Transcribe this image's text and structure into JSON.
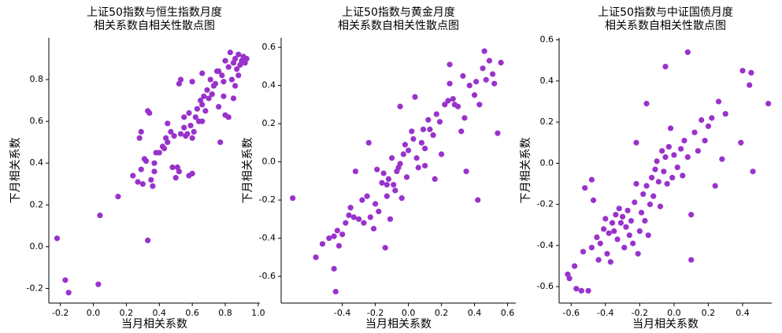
{
  "chart_data": [
    {
      "type": "scatter",
      "title": "上证50指数与恒生指数月度\n相关系数自相关性散点图",
      "x_label": "当月相关系数",
      "y_label": "下月相关系数",
      "color": "#9932cc",
      "xlim": [
        -0.27,
        1.01
      ],
      "ylim": [
        -0.27,
        1.0
      ],
      "xticks": [
        -0.2,
        {
          "value": 0,
          "label": "0.0"
        },
        0.2,
        0.4,
        0.6,
        0.8,
        {
          "value": 1,
          "label": "1.0"
        }
      ],
      "yticks": [
        -0.2,
        {
          "value": 0,
          "label": "0.0"
        },
        0.2,
        0.4,
        0.6,
        0.8
      ],
      "x": [
        -0.22,
        -0.17,
        -0.15,
        0.03,
        0.04,
        0.15,
        0.33,
        0.24,
        0.27,
        0.29,
        0.3,
        0.31,
        0.32,
        0.33,
        0.34,
        0.35,
        0.36,
        0.37,
        0.37,
        0.28,
        0.29,
        0.38,
        0.4,
        0.42,
        0.43,
        0.44,
        0.45,
        0.47,
        0.49,
        0.5,
        0.51,
        0.52,
        0.53,
        0.53,
        0.55,
        0.55,
        0.56,
        0.57,
        0.58,
        0.58,
        0.6,
        0.59,
        0.6,
        0.61,
        0.62,
        0.63,
        0.64,
        0.65,
        0.66,
        0.66,
        0.67,
        0.68,
        0.69,
        0.7,
        0.71,
        0.72,
        0.73,
        0.74,
        0.75,
        0.76,
        0.77,
        0.78,
        0.79,
        0.8,
        0.8,
        0.82,
        0.82,
        0.83,
        0.84,
        0.85,
        0.86,
        0.86,
        0.87,
        0.88,
        0.88,
        0.89,
        0.9,
        0.91,
        0.92,
        0.93,
        0.6,
        0.66,
        0.52,
        0.45,
        0.48,
        0.76,
        0.79,
        0.85
      ],
      "values": [
        0.04,
        -0.16,
        -0.22,
        -0.18,
        0.15,
        0.24,
        0.03,
        0.34,
        0.31,
        0.37,
        0.3,
        0.42,
        0.41,
        0.65,
        0.64,
        0.32,
        0.29,
        0.36,
        0.4,
        0.52,
        0.55,
        0.45,
        0.45,
        0.48,
        0.47,
        0.52,
        0.5,
        0.55,
        0.53,
        0.33,
        0.38,
        0.36,
        0.54,
        0.8,
        0.57,
        0.62,
        0.53,
        0.54,
        0.64,
        0.34,
        0.35,
        0.58,
        0.52,
        0.55,
        0.62,
        0.66,
        0.6,
        0.7,
        0.68,
        0.6,
        0.72,
        0.65,
        0.75,
        0.71,
        0.8,
        0.73,
        0.77,
        0.78,
        0.84,
        0.84,
        0.5,
        0.82,
        0.79,
        0.89,
        0.63,
        0.62,
        0.86,
        0.93,
        0.8,
        0.88,
        0.77,
        0.9,
        0.85,
        0.92,
        0.82,
        0.87,
        0.89,
        0.91,
        0.88,
        0.9,
        0.79,
        0.83,
        0.78,
        0.59,
        0.38,
        0.67,
        0.72,
        0.71
      ]
    },
    {
      "type": "scatter",
      "title": "上证50指数与黄金月度\n相关系数自相关性散点图",
      "x_label": "当月相关系数",
      "y_label": "下月相关系数",
      "color": "#9932cc",
      "xlim": [
        -0.77,
        0.65
      ],
      "ylim": [
        -0.74,
        0.65
      ],
      "xticks": [
        -0.4,
        -0.2,
        {
          "value": 0,
          "label": "0.0"
        },
        0.2,
        0.4,
        0.6
      ],
      "yticks": [
        -0.6,
        -0.4,
        -0.2,
        {
          "value": 0,
          "label": "0.0"
        },
        0.2,
        0.4,
        0.6
      ],
      "x": [
        -0.7,
        -0.56,
        -0.52,
        -0.48,
        -0.45,
        -0.44,
        -0.45,
        -0.43,
        -0.42,
        -0.4,
        -0.38,
        -0.36,
        -0.35,
        -0.33,
        -0.32,
        -0.3,
        -0.28,
        -0.27,
        -0.25,
        -0.24,
        -0.23,
        -0.21,
        -0.2,
        -0.19,
        -0.18,
        -0.16,
        -0.15,
        -0.14,
        -0.13,
        -0.12,
        -0.11,
        -0.1,
        -0.09,
        -0.08,
        -0.07,
        -0.06,
        -0.05,
        -0.04,
        -0.03,
        -0.02,
        -0.01,
        0.0,
        0.02,
        0.03,
        0.05,
        0.06,
        0.08,
        0.09,
        0.1,
        0.12,
        0.13,
        0.15,
        0.16,
        0.17,
        0.19,
        0.2,
        0.22,
        0.24,
        0.25,
        0.27,
        0.28,
        0.3,
        0.32,
        0.33,
        0.34,
        0.35,
        0.37,
        0.4,
        0.41,
        0.42,
        0.43,
        0.45,
        0.46,
        0.47,
        0.49,
        0.51,
        0.52,
        0.54,
        0.56,
        -0.05,
        0.04,
        0.25,
        -0.13,
        0.1
      ],
      "values": [
        -0.19,
        -0.5,
        -0.43,
        -0.4,
        -0.56,
        -0.68,
        -0.39,
        -0.36,
        -0.44,
        -0.38,
        -0.32,
        -0.28,
        -0.24,
        -0.29,
        -0.05,
        -0.3,
        -0.2,
        -0.32,
        -0.18,
        0.1,
        -0.29,
        -0.35,
        -0.22,
        -0.04,
        -0.26,
        -0.11,
        -0.06,
        -0.45,
        -0.12,
        -0.09,
        -0.3,
        0.02,
        -0.12,
        -0.15,
        -0.05,
        -0.03,
        -0.01,
        -0.19,
        0.04,
        0.09,
        -0.08,
        0.06,
        0.16,
        0.12,
        0.02,
        -0.03,
        0.1,
        0.17,
        -0.02,
        0.22,
        0.17,
        0.14,
        -0.09,
        0.25,
        0.21,
        0.04,
        0.3,
        0.32,
        0.41,
        0.33,
        0.3,
        0.29,
        0.16,
        0.45,
        0.23,
        -0.05,
        0.4,
        0.35,
        0.42,
        -0.2,
        0.3,
        0.49,
        0.58,
        0.43,
        0.53,
        0.46,
        0.41,
        0.15,
        0.52,
        0.29,
        0.34,
        0.51,
        -0.18,
        0.07
      ]
    },
    {
      "type": "scatter",
      "title": "上证50指数与中证国债月度\n相关系数自相关性散点图",
      "x_label": "当月相关系数",
      "y_label": "下月相关系数",
      "color": "#9932cc",
      "xlim": [
        -0.67,
        0.57
      ],
      "ylim": [
        -0.68,
        0.61
      ],
      "xticks": [
        -0.6,
        -0.4,
        -0.2,
        {
          "value": 0,
          "label": "0.0"
        },
        0.2,
        0.4
      ],
      "yticks": [
        -0.6,
        -0.4,
        -0.2,
        {
          "value": 0,
          "label": "0.0"
        },
        0.2,
        0.4,
        0.6
      ],
      "x": [
        -0.62,
        -0.61,
        -0.57,
        -0.54,
        -0.53,
        -0.5,
        -0.48,
        -0.47,
        -0.45,
        -0.44,
        -0.43,
        -0.41,
        -0.4,
        -0.39,
        -0.38,
        -0.37,
        -0.36,
        -0.35,
        -0.34,
        -0.33,
        -0.32,
        -0.31,
        -0.3,
        -0.29,
        -0.28,
        -0.27,
        -0.26,
        -0.25,
        -0.24,
        -0.23,
        -0.22,
        -0.21,
        -0.2,
        -0.19,
        -0.18,
        -0.17,
        -0.16,
        -0.15,
        -0.14,
        -0.13,
        -0.12,
        -0.11,
        -0.1,
        -0.09,
        -0.08,
        -0.07,
        -0.06,
        -0.05,
        -0.04,
        -0.03,
        -0.02,
        -0.01,
        0.0,
        0.02,
        0.04,
        0.05,
        0.06,
        0.08,
        0.08,
        0.1,
        0.1,
        0.12,
        0.14,
        0.16,
        0.18,
        0.2,
        0.22,
        0.24,
        0.26,
        0.28,
        0.3,
        0.39,
        0.4,
        0.44,
        0.45,
        0.46,
        0.55,
        -0.22,
        -0.16,
        -0.05,
        -0.48,
        -0.52,
        -0.58
      ],
      "values": [
        -0.54,
        -0.56,
        -0.61,
        -0.62,
        -0.43,
        -0.62,
        -0.41,
        -0.18,
        -0.36,
        -0.47,
        -0.39,
        -0.32,
        -0.27,
        -0.44,
        -0.34,
        -0.48,
        -0.29,
        -0.33,
        -0.25,
        -0.37,
        -0.22,
        -0.29,
        -0.26,
        -0.41,
        -0.31,
        -0.23,
        -0.35,
        -0.28,
        -0.39,
        -0.19,
        -0.1,
        -0.44,
        -0.33,
        -0.24,
        -0.15,
        -0.28,
        -0.11,
        -0.35,
        -0.2,
        -0.07,
        -0.16,
        -0.03,
        0.01,
        -0.09,
        -0.21,
        0.06,
        -0.04,
        0.03,
        -0.1,
        0.08,
        0.17,
        -0.07,
        0.04,
        -0.02,
        0.07,
        -0.06,
        0.11,
        0.03,
        0.54,
        -0.47,
        -0.25,
        0.15,
        0.06,
        0.21,
        0.11,
        0.18,
        0.22,
        -0.11,
        0.3,
        0.02,
        0.24,
        0.1,
        0.45,
        0.38,
        0.44,
        -0.04,
        0.29,
        0.1,
        0.29,
        0.47,
        -0.08,
        -0.12,
        -0.5
      ]
    }
  ]
}
